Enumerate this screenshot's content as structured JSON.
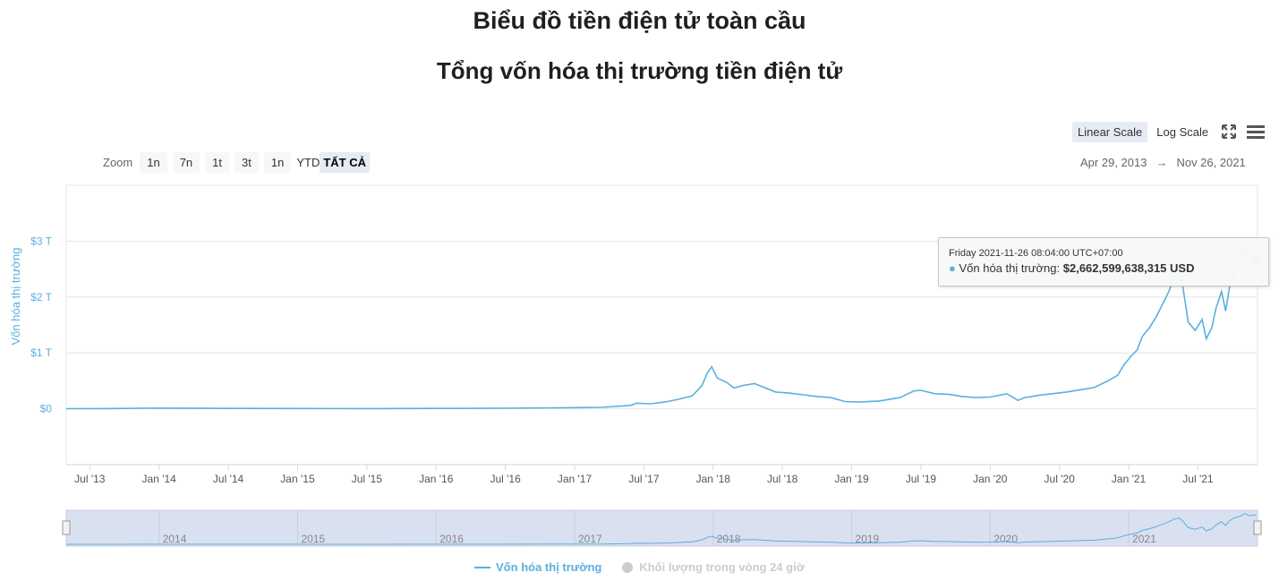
{
  "page": {
    "title": "Biểu đồ tiền điện tử toàn cầu"
  },
  "toolbar": {
    "scale_buttons": [
      "Linear Scale",
      "Log Scale"
    ],
    "active_scale": "Linear Scale",
    "fullscreen_icon": "expand-icon",
    "menu_icon": "hamburger-menu-icon"
  },
  "zoom": {
    "label": "Zoom",
    "buttons": [
      "1n",
      "7n",
      "1t",
      "3t",
      "1n",
      "YTD",
      "TẤT CẢ"
    ],
    "selected": "TẤT CẢ"
  },
  "range": {
    "from": "Apr 29, 2013",
    "arrow": "→",
    "to": "Nov 26, 2021"
  },
  "tooltip": {
    "date": "Friday 2021-11-26 08:04:00 UTC+07:00",
    "series_label": "Vốn hóa thị trường:",
    "value": "$2,662,599,638,315 USD"
  },
  "legend": [
    {
      "name": "Vốn hóa thị trường",
      "color": "#5bafe0",
      "active": true
    },
    {
      "name": "Khối lượng trong vòng 24 giờ",
      "color": "#cccccc",
      "active": false
    }
  ],
  "chart_data": {
    "type": "line",
    "title": "Tổng vốn hóa thị trường tiền điện tử",
    "ylabel": "Vốn hóa thị trường",
    "xlabel": "",
    "ylim": [
      -1,
      4
    ],
    "y_unit": "T",
    "y_ticks": [
      0,
      1,
      2,
      3
    ],
    "y_tick_labels": [
      "$0",
      "$1 T",
      "$2 T",
      "$3 T"
    ],
    "xlim": [
      2013.33,
      2021.93
    ],
    "x_ticks": [
      2013.5,
      2014.0,
      2014.5,
      2015.0,
      2015.5,
      2016.0,
      2016.5,
      2017.0,
      2017.5,
      2018.0,
      2018.5,
      2019.0,
      2019.5,
      2020.0,
      2020.5,
      2021.0,
      2021.5
    ],
    "x_tick_labels": [
      "Jul '13",
      "Jan '14",
      "Jul '14",
      "Jan '15",
      "Jul '15",
      "Jan '16",
      "Jul '16",
      "Jan '17",
      "Jul '17",
      "Jan '18",
      "Jul '18",
      "Jan '19",
      "Jul '19",
      "Jan '20",
      "Jul '20",
      "Jan '21",
      "Jul '21"
    ],
    "grid": true,
    "series": [
      {
        "name": "Vốn hóa thị trường",
        "color": "#5bafe0",
        "x": [
          2013.33,
          2013.6,
          2013.9,
          2014.0,
          2014.3,
          2014.6,
          2015.0,
          2015.5,
          2016.0,
          2016.5,
          2016.9,
          2017.2,
          2017.4,
          2017.45,
          2017.55,
          2017.65,
          2017.75,
          2017.85,
          2017.92,
          2017.96,
          2017.99,
          2018.03,
          2018.1,
          2018.15,
          2018.22,
          2018.3,
          2018.38,
          2018.45,
          2018.55,
          2018.65,
          2018.75,
          2018.85,
          2018.95,
          2019.05,
          2019.2,
          2019.35,
          2019.45,
          2019.5,
          2019.6,
          2019.7,
          2019.8,
          2019.9,
          2020.0,
          2020.12,
          2020.2,
          2020.25,
          2020.35,
          2020.45,
          2020.55,
          2020.65,
          2020.75,
          2020.85,
          2020.92,
          2020.97,
          2021.02,
          2021.06,
          2021.1,
          2021.15,
          2021.2,
          2021.25,
          2021.29,
          2021.33,
          2021.36,
          2021.39,
          2021.43,
          2021.48,
          2021.53,
          2021.56,
          2021.6,
          2021.63,
          2021.67,
          2021.7,
          2021.73,
          2021.76,
          2021.8,
          2021.84,
          2021.87,
          2021.9,
          2021.92
        ],
        "y": [
          0.002,
          0.003,
          0.01,
          0.012,
          0.008,
          0.007,
          0.005,
          0.004,
          0.006,
          0.009,
          0.017,
          0.025,
          0.06,
          0.1,
          0.09,
          0.12,
          0.17,
          0.23,
          0.42,
          0.65,
          0.75,
          0.55,
          0.47,
          0.37,
          0.42,
          0.45,
          0.37,
          0.3,
          0.28,
          0.25,
          0.22,
          0.2,
          0.13,
          0.12,
          0.14,
          0.2,
          0.32,
          0.33,
          0.27,
          0.26,
          0.22,
          0.2,
          0.21,
          0.27,
          0.15,
          0.2,
          0.24,
          0.27,
          0.3,
          0.34,
          0.38,
          0.5,
          0.6,
          0.8,
          0.95,
          1.05,
          1.3,
          1.45,
          1.65,
          1.9,
          2.1,
          2.35,
          2.45,
          2.2,
          1.55,
          1.4,
          1.6,
          1.25,
          1.45,
          1.8,
          2.1,
          1.75,
          2.2,
          2.45,
          2.6,
          2.85,
          2.65,
          2.75,
          2.66
        ]
      }
    ],
    "navigator": {
      "x_tick_labels": [
        "2014",
        "2015",
        "2016",
        "2017",
        "2018",
        "2019",
        "2020",
        "2021"
      ]
    }
  }
}
